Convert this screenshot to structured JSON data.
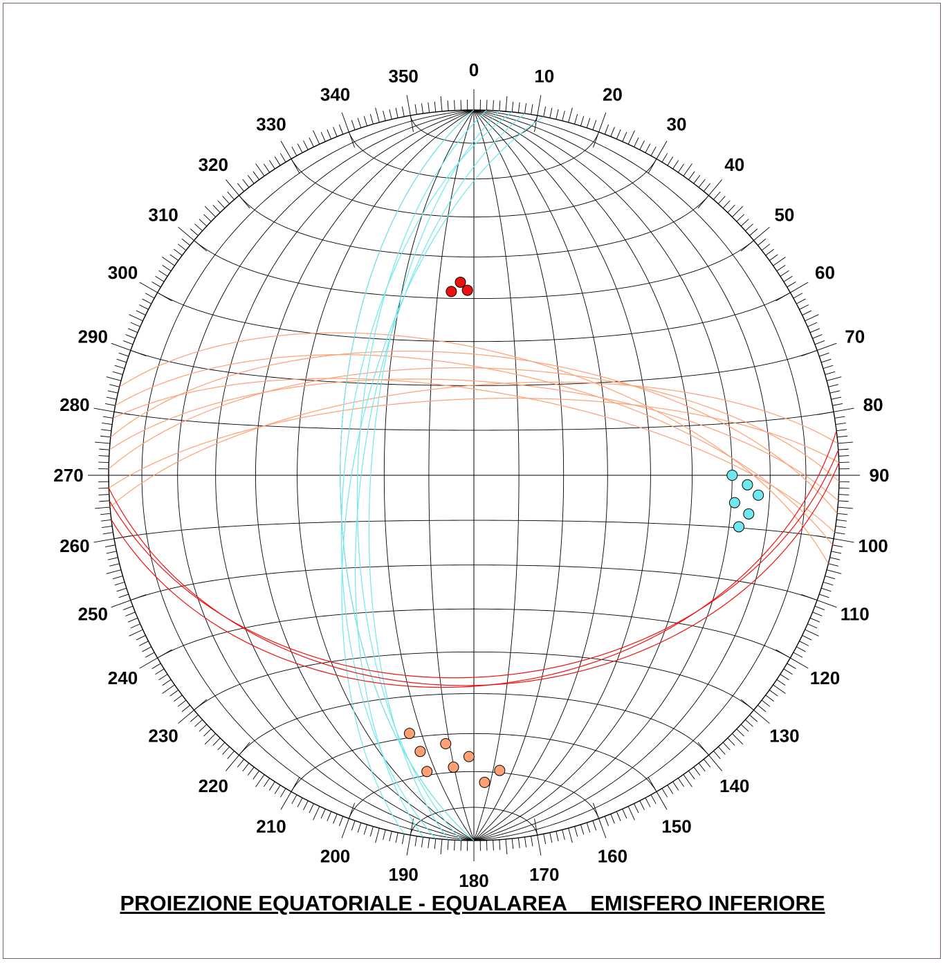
{
  "caption": "PROIEZIONE EQUATORIALE - EQUALAREA    EMISFERO INFERIORE",
  "azimuth_labels": [
    {
      "az": 0,
      "text": "0"
    },
    {
      "az": 10,
      "text": "10"
    },
    {
      "az": 20,
      "text": "20"
    },
    {
      "az": 30,
      "text": "30"
    },
    {
      "az": 40,
      "text": "40"
    },
    {
      "az": 50,
      "text": "50"
    },
    {
      "az": 60,
      "text": "60"
    },
    {
      "az": 70,
      "text": "70"
    },
    {
      "az": 80,
      "text": "80"
    },
    {
      "az": 90,
      "text": "90"
    },
    {
      "az": 100,
      "text": "100"
    },
    {
      "az": 110,
      "text": "110"
    },
    {
      "az": 120,
      "text": "120"
    },
    {
      "az": 130,
      "text": "130"
    },
    {
      "az": 140,
      "text": "140"
    },
    {
      "az": 150,
      "text": "150"
    },
    {
      "az": 160,
      "text": "160"
    },
    {
      "az": 170,
      "text": "170"
    },
    {
      "az": 180,
      "text": "180"
    },
    {
      "az": 190,
      "text": "190"
    },
    {
      "az": 200,
      "text": "200"
    },
    {
      "az": 210,
      "text": "210"
    },
    {
      "az": 220,
      "text": "220"
    },
    {
      "az": 230,
      "text": "230"
    },
    {
      "az": 240,
      "text": "240"
    },
    {
      "az": 250,
      "text": "250"
    },
    {
      "az": 260,
      "text": "260"
    },
    {
      "az": 270,
      "text": "270"
    },
    {
      "az": 280,
      "text": "280"
    },
    {
      "az": 290,
      "text": "290"
    },
    {
      "az": 300,
      "text": "300"
    },
    {
      "az": 310,
      "text": "310"
    },
    {
      "az": 320,
      "text": "320"
    },
    {
      "az": 330,
      "text": "330"
    },
    {
      "az": 340,
      "text": "340"
    },
    {
      "az": 350,
      "text": "350"
    }
  ],
  "chart_data": {
    "type": "scatter",
    "projection": "equal-area",
    "hemisphere": "lower",
    "grid": true,
    "grid_interval_deg": 10,
    "families": [
      {
        "color": "#ff9f73",
        "planes": [
          {
            "dip_direction": 355,
            "dip": 70
          },
          {
            "dip_direction": 358,
            "dip": 73
          },
          {
            "dip_direction": 1,
            "dip": 66
          },
          {
            "dip_direction": 4,
            "dip": 69
          },
          {
            "dip_direction": 6,
            "dip": 63
          },
          {
            "dip_direction": 9,
            "dip": 71
          },
          {
            "dip_direction": 11,
            "dip": 66
          },
          {
            "dip_direction": 14,
            "dip": 62
          }
        ]
      },
      {
        "color": "#6ee8ee",
        "planes": [
          {
            "dip_direction": 270,
            "dip": 60
          },
          {
            "dip_direction": 272,
            "dip": 64
          },
          {
            "dip_direction": 274,
            "dip": 67
          },
          {
            "dip_direction": 276,
            "dip": 61
          },
          {
            "dip_direction": 278,
            "dip": 65
          },
          {
            "dip_direction": 281,
            "dip": 63
          }
        ]
      },
      {
        "color": "#ee1111",
        "planes": [
          {
            "dip_direction": 173,
            "dip": 42
          },
          {
            "dip_direction": 176,
            "dip": 44
          },
          {
            "dip_direction": 178,
            "dip": 42
          }
        ]
      }
    ]
  }
}
